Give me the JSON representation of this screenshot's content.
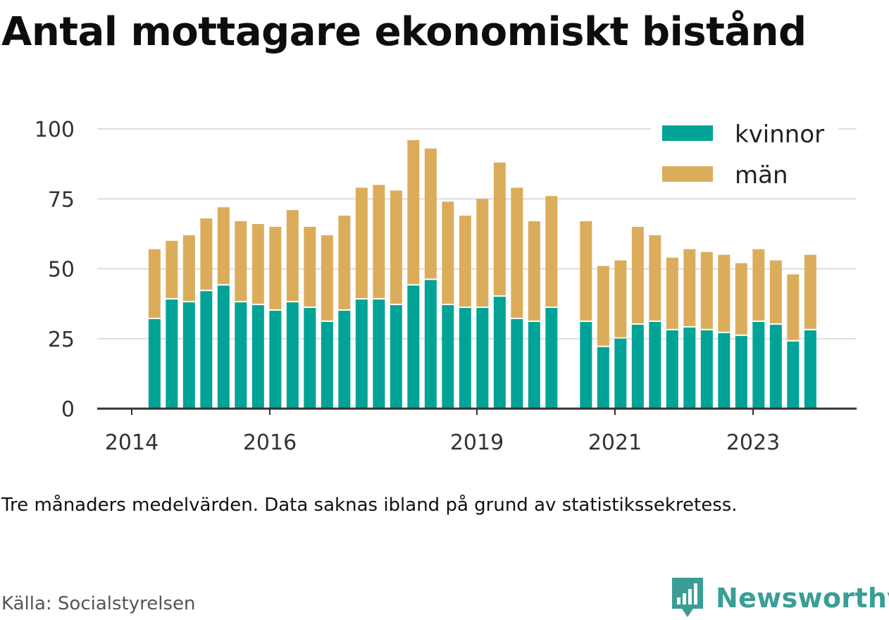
{
  "title": "Antal mottagare ekonomiskt bistånd",
  "note": "Tre månaders medelvärden. Data saknas ibland på grund av statistikssekretess.",
  "source": "Källa: Socialstyrelsen",
  "brand": {
    "name": "Newsworthy",
    "icon": "newsworthy-logo-icon"
  },
  "colors": {
    "kvinnor": "#00a396",
    "man": "#dbad5b",
    "grid": "#dddddd",
    "axis": "#333333",
    "brand": "#3a9e96"
  },
  "chart_data": {
    "type": "bar",
    "stacked": true,
    "title": "Antal mottagare ekonomiskt bistånd",
    "xlabel": "",
    "ylabel": "",
    "ylim": [
      0,
      100
    ],
    "yticks": [
      "0",
      "25",
      "50",
      "75",
      "100"
    ],
    "xticks": [
      {
        "label": "2014",
        "x": 2014.0
      },
      {
        "label": "2016",
        "x": 2016.0
      },
      {
        "label": "2019",
        "x": 2019.0
      },
      {
        "label": "2021",
        "x": 2021.0
      },
      {
        "label": "2023",
        "x": 2023.0
      }
    ],
    "xlim": [
      2013.5,
      2024.5
    ],
    "legend_position": "top-right",
    "x": [
      2014.33,
      2014.58,
      2014.83,
      2015.08,
      2015.33,
      2015.58,
      2015.83,
      2016.08,
      2016.33,
      2016.58,
      2016.83,
      2017.08,
      2017.33,
      2017.58,
      2017.83,
      2018.08,
      2018.33,
      2018.58,
      2018.83,
      2019.08,
      2019.33,
      2019.58,
      2019.83,
      2020.08,
      2020.58,
      2020.83,
      2021.08,
      2021.33,
      2021.58,
      2021.83,
      2022.08,
      2022.33,
      2022.58,
      2022.83,
      2023.08,
      2023.33,
      2023.58,
      2023.83
    ],
    "series": [
      {
        "name": "kvinnor",
        "color": "#00a396",
        "values": [
          32,
          39,
          38,
          42,
          44,
          38,
          37,
          35,
          38,
          36,
          31,
          35,
          39,
          39,
          37,
          44,
          46,
          37,
          36,
          36,
          40,
          32,
          31,
          36,
          31,
          22,
          25,
          30,
          31,
          28,
          29,
          28,
          27,
          26,
          31,
          30,
          24,
          28
        ]
      },
      {
        "name": "män",
        "color": "#dbad5b",
        "values": [
          25,
          21,
          24,
          26,
          28,
          29,
          29,
          30,
          33,
          29,
          31,
          34,
          40,
          41,
          41,
          52,
          47,
          37,
          33,
          39,
          48,
          47,
          36,
          40,
          36,
          29,
          28,
          35,
          31,
          26,
          28,
          28,
          28,
          26,
          26,
          23,
          24,
          27
        ]
      }
    ]
  }
}
